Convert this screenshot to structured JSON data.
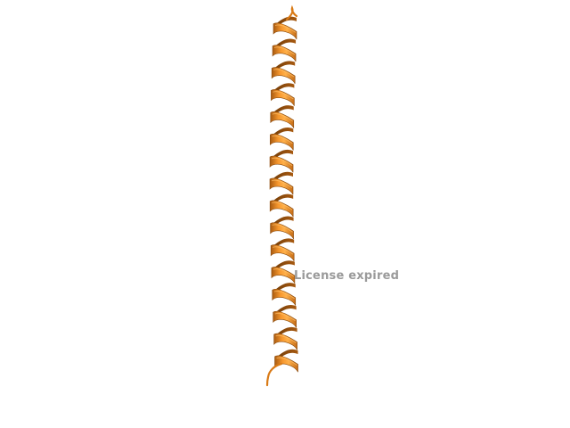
{
  "viewer": {
    "watermark": "License expired",
    "background_color": "#ffffff"
  },
  "molecule": {
    "representation": "cartoon",
    "secondary_structure": "alpha-helix",
    "color": "#f28a1e",
    "shadow_color": "#8a4a0c",
    "turns": 16
  }
}
